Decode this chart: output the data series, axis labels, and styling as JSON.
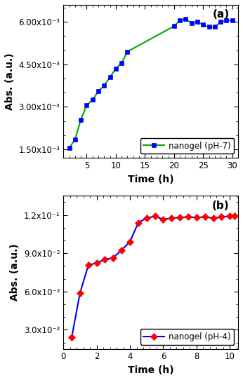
{
  "plot_a": {
    "time": [
      2,
      3,
      4,
      5,
      6,
      7,
      8,
      9,
      10,
      11,
      12,
      20,
      21,
      22,
      23,
      24,
      25,
      26,
      27,
      28,
      29,
      30
    ],
    "abs": [
      0.00155,
      0.00185,
      0.00255,
      0.00305,
      0.00325,
      0.00355,
      0.00375,
      0.00405,
      0.00435,
      0.00455,
      0.00495,
      0.00585,
      0.00605,
      0.0061,
      0.00595,
      0.006,
      0.0059,
      0.00582,
      0.00582,
      0.006,
      0.00605,
      0.00605
    ],
    "color_line": "#00aa00",
    "color_marker": "#0000ff",
    "marker": "s",
    "label": "nanogel (pH-7)",
    "xlabel": "Time (h)",
    "ylabel": "Abs. (a.u.)",
    "panel": "(a)",
    "xlim": [
      1,
      31
    ],
    "xticks": [
      5,
      10,
      15,
      20,
      25,
      30
    ],
    "ylim": [
      0.0012,
      0.0066
    ],
    "yticks": [
      0.0015,
      0.003,
      0.0045,
      0.006
    ],
    "ytick_labels": [
      "1.50x10⁻³",
      "3.00x10⁻³",
      "4.50x10⁻³",
      "6.00x10⁻³"
    ]
  },
  "plot_b": {
    "time": [
      0.5,
      1.0,
      1.5,
      2.0,
      2.5,
      3.0,
      3.5,
      4.0,
      4.5,
      5.0,
      5.5,
      6.0,
      6.5,
      7.0,
      7.5,
      8.0,
      8.5,
      9.0,
      9.5,
      10.0,
      10.3
    ],
    "abs": [
      0.024,
      0.059,
      0.0805,
      0.0825,
      0.085,
      0.0865,
      0.0925,
      0.099,
      0.114,
      0.1175,
      0.119,
      0.1165,
      0.1175,
      0.118,
      0.1185,
      0.118,
      0.1185,
      0.1175,
      0.1185,
      0.119,
      0.119
    ],
    "color_line": "#0000ff",
    "color_marker": "#ff0000",
    "marker": "D",
    "label": "nanogel (pH-4)",
    "xlabel": "Time (h)",
    "ylabel": "Abs. (a.u.)",
    "panel": "(b)",
    "xlim": [
      0,
      10.5
    ],
    "xticks": [
      0,
      2,
      4,
      6,
      8,
      10
    ],
    "ylim": [
      0.015,
      0.135
    ],
    "yticks": [
      0.03,
      0.06,
      0.09,
      0.12
    ],
    "ytick_labels": [
      "3.0x10⁻²",
      "6.0x10⁻²",
      "9.0x10⁻²",
      "1.2x10⁻¹"
    ]
  },
  "fig_bgcolor": "#ffffff",
  "axes_bgcolor": "#ffffff",
  "tick_label_size": 8.5,
  "axis_label_size": 10,
  "legend_size": 8.5,
  "panel_label_size": 11,
  "linewidth": 1.5,
  "markersize": 5
}
